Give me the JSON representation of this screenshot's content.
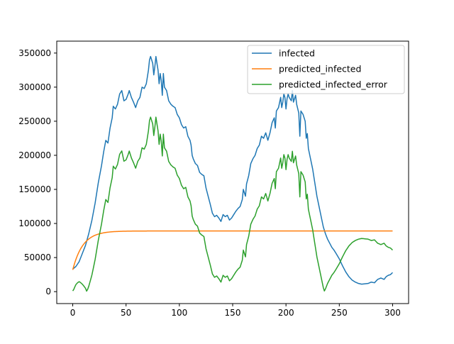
{
  "chart_data": {
    "type": "line",
    "title": "",
    "xlabel": "",
    "ylabel": "",
    "xlim": [
      -15,
      315
    ],
    "ylim": [
      -17500,
      367500
    ],
    "xticks": [
      0,
      50,
      100,
      150,
      200,
      250,
      300
    ],
    "yticks": [
      0,
      50000,
      100000,
      150000,
      200000,
      250000,
      300000,
      350000
    ],
    "xtick_labels": [
      "0",
      "50",
      "100",
      "150",
      "200",
      "250",
      "300"
    ],
    "ytick_labels": [
      "0",
      "50000",
      "100000",
      "150000",
      "200000",
      "250000",
      "300000",
      "350000"
    ],
    "grid": false,
    "legend_position": "upper-right",
    "series": [
      {
        "name": "infected",
        "color": "#1f77b4",
        "points": [
          [
            0,
            33000
          ],
          [
            3,
            37000
          ],
          [
            6,
            44000
          ],
          [
            9,
            56000
          ],
          [
            12,
            68000
          ],
          [
            15,
            85000
          ],
          [
            18,
            105000
          ],
          [
            21,
            130000
          ],
          [
            24,
            160000
          ],
          [
            27,
            185000
          ],
          [
            29,
            205000
          ],
          [
            31,
            222000
          ],
          [
            33,
            218000
          ],
          [
            35,
            240000
          ],
          [
            37,
            255000
          ],
          [
            38,
            272000
          ],
          [
            40,
            268000
          ],
          [
            42,
            275000
          ],
          [
            44,
            290000
          ],
          [
            46,
            295000
          ],
          [
            48,
            280000
          ],
          [
            50,
            282000
          ],
          [
            52,
            290000
          ],
          [
            53,
            295000
          ],
          [
            55,
            285000
          ],
          [
            57,
            278000
          ],
          [
            59,
            270000
          ],
          [
            61,
            280000
          ],
          [
            63,
            285000
          ],
          [
            65,
            300000
          ],
          [
            67,
            298000
          ],
          [
            69,
            305000
          ],
          [
            71,
            325000
          ],
          [
            72,
            340000
          ],
          [
            73,
            345000
          ],
          [
            75,
            335000
          ],
          [
            76,
            318000
          ],
          [
            77,
            330000
          ],
          [
            78,
            345000
          ],
          [
            79,
            335000
          ],
          [
            80,
            325000
          ],
          [
            81,
            305000
          ],
          [
            82,
            320000
          ],
          [
            83,
            310000
          ],
          [
            84,
            288000
          ],
          [
            85,
            320000
          ],
          [
            86,
            300000
          ],
          [
            88,
            295000
          ],
          [
            90,
            280000
          ],
          [
            92,
            275000
          ],
          [
            94,
            272000
          ],
          [
            96,
            270000
          ],
          [
            98,
            260000
          ],
          [
            100,
            255000
          ],
          [
            102,
            245000
          ],
          [
            104,
            240000
          ],
          [
            106,
            242000
          ],
          [
            108,
            228000
          ],
          [
            110,
            222000
          ],
          [
            111,
            215000
          ],
          [
            112,
            200000
          ],
          [
            113,
            195000
          ],
          [
            115,
            188000
          ],
          [
            117,
            185000
          ],
          [
            119,
            175000
          ],
          [
            121,
            172000
          ],
          [
            123,
            170000
          ],
          [
            125,
            152000
          ],
          [
            127,
            140000
          ],
          [
            129,
            128000
          ],
          [
            131,
            115000
          ],
          [
            133,
            110000
          ],
          [
            135,
            112000
          ],
          [
            137,
            108000
          ],
          [
            139,
            103000
          ],
          [
            141,
            113000
          ],
          [
            143,
            110000
          ],
          [
            145,
            112000
          ],
          [
            147,
            105000
          ],
          [
            149,
            108000
          ],
          [
            151,
            113000
          ],
          [
            153,
            118000
          ],
          [
            155,
            122000
          ],
          [
            157,
            125000
          ],
          [
            159,
            135000
          ],
          [
            160,
            150000
          ],
          [
            162,
            140000
          ],
          [
            163,
            158000
          ],
          [
            165,
            170000
          ],
          [
            167,
            188000
          ],
          [
            169,
            195000
          ],
          [
            171,
            200000
          ],
          [
            173,
            210000
          ],
          [
            175,
            215000
          ],
          [
            177,
            228000
          ],
          [
            179,
            225000
          ],
          [
            181,
            233000
          ],
          [
            183,
            222000
          ],
          [
            185,
            233000
          ],
          [
            187,
            248000
          ],
          [
            189,
            255000
          ],
          [
            190,
            240000
          ],
          [
            191,
            265000
          ],
          [
            193,
            270000
          ],
          [
            195,
            285000
          ],
          [
            196,
            270000
          ],
          [
            197,
            278000
          ],
          [
            198,
            290000
          ],
          [
            199,
            285000
          ],
          [
            200,
            268000
          ],
          [
            201,
            283000
          ],
          [
            202,
            290000
          ],
          [
            203,
            285000
          ],
          [
            205,
            280000
          ],
          [
            206,
            295000
          ],
          [
            207,
            278000
          ],
          [
            209,
            288000
          ],
          [
            210,
            275000
          ],
          [
            212,
            262000
          ],
          [
            213,
            228000
          ],
          [
            214,
            265000
          ],
          [
            216,
            260000
          ],
          [
            218,
            250000
          ],
          [
            219,
            225000
          ],
          [
            220,
            232000
          ],
          [
            221,
            210000
          ],
          [
            223,
            195000
          ],
          [
            225,
            180000
          ],
          [
            227,
            160000
          ],
          [
            229,
            140000
          ],
          [
            231,
            125000
          ],
          [
            233,
            110000
          ],
          [
            235,
            95000
          ],
          [
            237,
            85000
          ],
          [
            239,
            77000
          ],
          [
            241,
            71000
          ],
          [
            243,
            65000
          ],
          [
            245,
            61000
          ],
          [
            247,
            56000
          ],
          [
            250,
            48000
          ],
          [
            253,
            38000
          ],
          [
            256,
            29000
          ],
          [
            259,
            22000
          ],
          [
            262,
            17000
          ],
          [
            265,
            14000
          ],
          [
            268,
            12000
          ],
          [
            271,
            11000
          ],
          [
            274,
            11500
          ],
          [
            277,
            12000
          ],
          [
            280,
            14000
          ],
          [
            283,
            13000
          ],
          [
            286,
            18000
          ],
          [
            289,
            20000
          ],
          [
            292,
            18000
          ],
          [
            294,
            22000
          ],
          [
            296,
            24000
          ],
          [
            298,
            25000
          ],
          [
            300,
            28000
          ]
        ]
      },
      {
        "name": "predicted_infected",
        "color": "#ff7f0e",
        "model": {
          "type": "logistic",
          "y0": 32000,
          "ymax": 89000,
          "rate": 0.105,
          "x_end": 300
        }
      },
      {
        "name": "predicted_infected_error",
        "color": "#2ca02c",
        "derived": "abs_diff_of_first_two"
      }
    ]
  }
}
